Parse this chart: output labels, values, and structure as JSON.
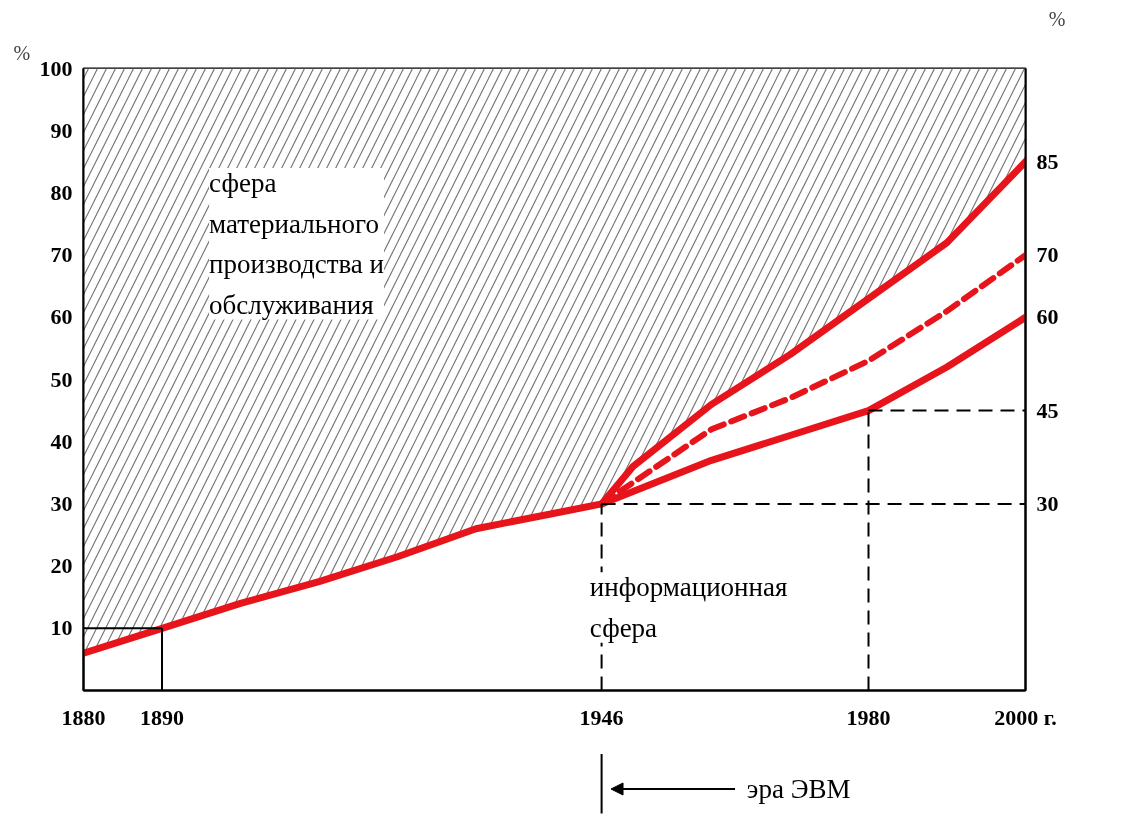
{
  "chart_data": {
    "type": "line",
    "ylabel": "%",
    "y2label": "%",
    "x": [
      1880,
      1890,
      1900,
      1910,
      1920,
      1930,
      1940,
      1946,
      1950,
      1960,
      1970,
      1980,
      1990,
      2000
    ],
    "series": [
      {
        "color": "#e8141b",
        "values": [
          6,
          10,
          14,
          17.5,
          21.5,
          26,
          28.5,
          30,
          36,
          46,
          54,
          63,
          72,
          85
        ],
        "lower": [
          6,
          10,
          14,
          17.5,
          21.5,
          26,
          28.5,
          30,
          36,
          46,
          54,
          63,
          72,
          85
        ],
        "upper": [
          100,
          100,
          100,
          100,
          100,
          100,
          100,
          100,
          100,
          100,
          100,
          100,
          100,
          100
        ]
      },
      {
        "color": "#e8141b",
        "x": [
          1946,
          1960,
          1970,
          1980,
          1990,
          2000
        ],
        "values": [
          30,
          42,
          47,
          53,
          61,
          70
        ],
        "line_style": "dashed"
      },
      {
        "color": "#e8141b",
        "x": [
          1946,
          1960,
          1970,
          1980,
          1990,
          2000
        ],
        "values": [
          30,
          37,
          41,
          45,
          52,
          60
        ]
      }
    ],
    "xlim": [
      1880,
      2000
    ],
    "xticks": [
      1880,
      1890,
      1946,
      1980,
      {
        "value": 2000,
        "label": "2000 г."
      }
    ],
    "ylim": [
      0,
      100
    ],
    "yticks": [
      10,
      20,
      30,
      40,
      50,
      60,
      70,
      80,
      90,
      100
    ],
    "y2lim": [
      0,
      100
    ],
    "y2ticks": [
      30,
      45,
      60,
      70,
      85
    ],
    "ref_lines": [
      {
        "axis": "y",
        "value": 10,
        "line_style": "solid",
        "color": "#000000"
      },
      {
        "axis": "x",
        "value": 1890,
        "line_style": "solid",
        "color": "#000000"
      },
      {
        "axis": "y",
        "value": 30,
        "line_style": "dashed",
        "color": "#000000"
      },
      {
        "axis": "x",
        "value": 1946,
        "line_style": "dashed",
        "color": "#000000"
      },
      {
        "axis": "y",
        "value": 45,
        "line_style": "dashed",
        "color": "#000000"
      },
      {
        "axis": "x",
        "value": 1980,
        "line_style": "dashed",
        "color": "#000000"
      }
    ],
    "annotations": [
      "сфера\nматериального\nпроизводства и\nобслуживания",
      "информационная\nсфера",
      "эра ЭВМ"
    ],
    "grid": false,
    "line_style": "solid"
  }
}
